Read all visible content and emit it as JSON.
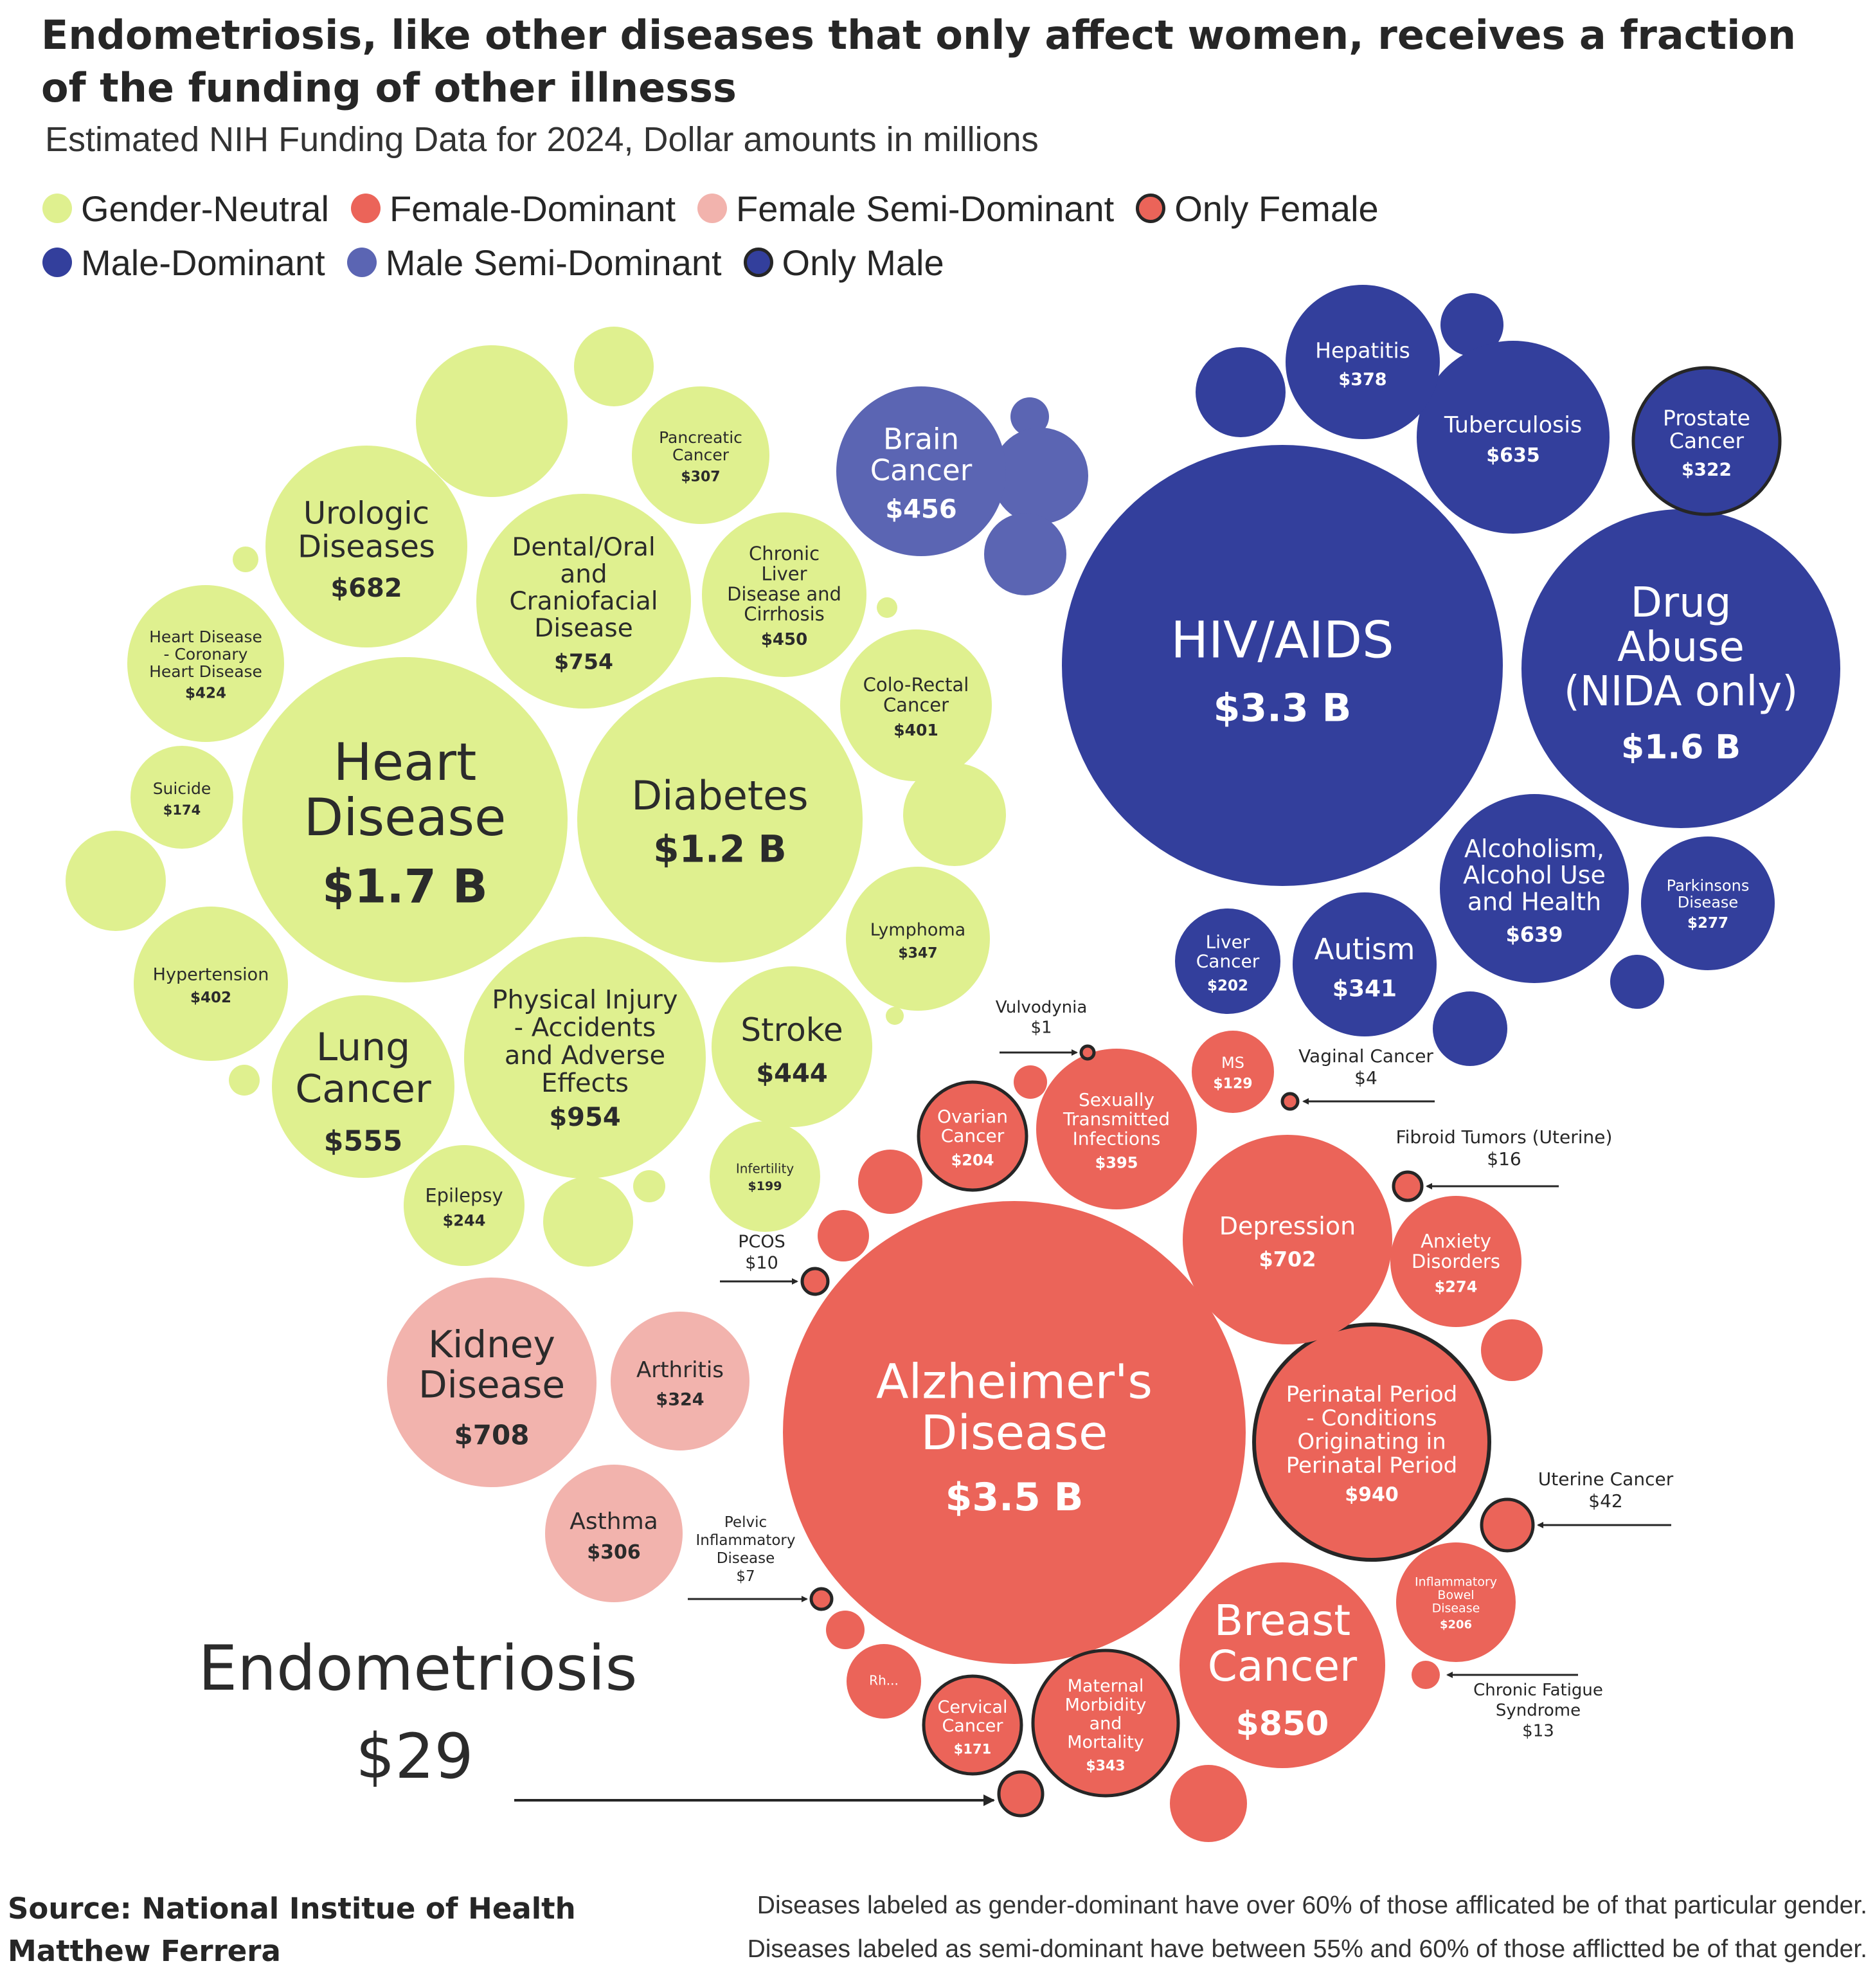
{
  "title": "Endometriosis, like other diseases that only affect women, receives a fraction of the funding of other illnesss",
  "subtitle": "Estimated NIH Funding Data for 2024, Dollar amounts in millions",
  "legend": [
    {
      "label": "Gender-Neutral",
      "color": "#dff08f",
      "outline": false
    },
    {
      "label": "Female-Dominant",
      "color": "#eb6459",
      "outline": false
    },
    {
      "label": "Female Semi-Dominant",
      "color": "#f2b3ad",
      "outline": false
    },
    {
      "label": "Only Female",
      "color": "#eb6459",
      "outline": true
    },
    {
      "label": "Male-Dominant",
      "color": "#333f9c",
      "outline": false
    },
    {
      "label": "Male Semi-Dominant",
      "color": "#5b65b3",
      "outline": false
    },
    {
      "label": "Only Male",
      "color": "#333f9c",
      "outline": true
    }
  ],
  "colors": {
    "Gender-Neutral": "#dff08f",
    "Female-Dominant": "#eb6459",
    "Female Semi-Dominant": "#f2b3ad",
    "Male-Dominant": "#333f9c",
    "Male Semi-Dominant": "#5b65b3",
    "outline": "#262626",
    "text_dark": "#2b2b2b",
    "text_light": "#ffffff"
  },
  "chart_data": {
    "type": "bubble",
    "units": "USD millions",
    "bubbles": [
      {
        "name": "Heart Disease",
        "label": "Heart\nDisease",
        "value_label": "$1.7 B",
        "value": 1700,
        "category": "Gender-Neutral"
      },
      {
        "name": "Diabetes",
        "label": "Diabetes",
        "value_label": "$1.2 B",
        "value": 1200,
        "category": "Gender-Neutral"
      },
      {
        "name": "Physical Injury - Accidents and Adverse Effects",
        "label": "Physical Injury\n- Accidents\nand Adverse\nEffects",
        "value_label": "$954",
        "value": 954,
        "category": "Gender-Neutral"
      },
      {
        "name": "Dental/Oral and Craniofacial Disease",
        "label": "Dental/Oral\nand\nCraniofacial\nDisease",
        "value_label": "$754",
        "value": 754,
        "category": "Gender-Neutral"
      },
      {
        "name": "Urologic Diseases",
        "label": "Urologic\nDiseases",
        "value_label": "$682",
        "value": 682,
        "category": "Gender-Neutral"
      },
      {
        "name": "Lung Cancer",
        "label": "Lung\nCancer",
        "value_label": "$555",
        "value": 555,
        "category": "Gender-Neutral"
      },
      {
        "name": "Chronic Liver Disease and Cirrhosis",
        "label": "Chronic\nLiver\nDisease and\nCirrhosis",
        "value_label": "$450",
        "value": 450,
        "category": "Gender-Neutral"
      },
      {
        "name": "Stroke",
        "label": "Stroke",
        "value_label": "$444",
        "value": 444,
        "category": "Gender-Neutral"
      },
      {
        "name": "Heart Disease - Coronary Heart Disease",
        "label": "Heart Disease\n- Coronary\nHeart Disease",
        "value_label": "$424",
        "value": 424,
        "category": "Gender-Neutral"
      },
      {
        "name": "Hypertension",
        "label": "Hypertension",
        "value_label": "$402",
        "value": 402,
        "category": "Gender-Neutral"
      },
      {
        "name": "Colo-Rectal Cancer",
        "label": "Colo-Rectal\nCancer",
        "value_label": "$401",
        "value": 401,
        "category": "Gender-Neutral"
      },
      {
        "name": "Lymphoma",
        "label": "Lymphoma",
        "value_label": "$347",
        "value": 347,
        "category": "Gender-Neutral"
      },
      {
        "name": "Pancreatic Cancer",
        "label": "Pancreatic\nCancer",
        "value_label": "$307",
        "value": 307,
        "category": "Gender-Neutral"
      },
      {
        "name": "Epilepsy",
        "label": "Epilepsy",
        "value_label": "$244",
        "value": 244,
        "category": "Gender-Neutral"
      },
      {
        "name": "Infertility",
        "label": "Infertility",
        "value_label": "$199",
        "value": 199,
        "category": "Gender-Neutral"
      },
      {
        "name": "Suicide",
        "label": "Suicide",
        "value_label": "$174",
        "value": 174,
        "category": "Gender-Neutral"
      },
      {
        "name": "Kidney Disease",
        "label": "Kidney\nDisease",
        "value_label": "$708",
        "value": 708,
        "category": "Female Semi-Dominant"
      },
      {
        "name": "Arthritis",
        "label": "Arthritis",
        "value_label": "$324",
        "value": 324,
        "category": "Female Semi-Dominant"
      },
      {
        "name": "Asthma",
        "label": "Asthma",
        "value_label": "$306",
        "value": 306,
        "category": "Female Semi-Dominant"
      },
      {
        "name": "HIV/AIDS",
        "label": "HIV/AIDS",
        "value_label": "$3.3 B",
        "value": 3300,
        "category": "Male-Dominant"
      },
      {
        "name": "Drug Abuse (NIDA only)",
        "label": "Drug\nAbuse\n(NIDA only)",
        "value_label": "$1.6 B",
        "value": 1600,
        "category": "Male-Dominant"
      },
      {
        "name": "Alcoholism, Alcohol Use and Health",
        "label": "Alcoholism,\nAlcohol Use\nand Health",
        "value_label": "$639",
        "value": 639,
        "category": "Male-Dominant"
      },
      {
        "name": "Tuberculosis",
        "label": "Tuberculosis",
        "value_label": "$635",
        "value": 635,
        "category": "Male-Dominant"
      },
      {
        "name": "Hepatitis",
        "label": "Hepatitis",
        "value_label": "$378",
        "value": 378,
        "category": "Male-Dominant"
      },
      {
        "name": "Autism",
        "label": "Autism",
        "value_label": "$341",
        "value": 341,
        "category": "Male-Dominant"
      },
      {
        "name": "Prostate Cancer",
        "label": "Prostate\nCancer",
        "value_label": "$322",
        "value": 322,
        "category": "Male-Dominant",
        "outline": true
      },
      {
        "name": "Parkinsons Disease",
        "label": "Parkinsons\nDisease",
        "value_label": "$277",
        "value": 277,
        "category": "Male-Dominant"
      },
      {
        "name": "Liver Cancer",
        "label": "Liver\nCancer",
        "value_label": "$202",
        "value": 202,
        "category": "Male-Dominant"
      },
      {
        "name": "Brain Cancer",
        "label": "Brain\nCancer",
        "value_label": "$456",
        "value": 456,
        "category": "Male Semi-Dominant"
      },
      {
        "name": "Alzheimer's Disease",
        "label": "Alzheimer's\nDisease",
        "value_label": "$3.5 B",
        "value": 3500,
        "category": "Female-Dominant"
      },
      {
        "name": "Perinatal Period - Conditions Originating in Perinatal Period",
        "label": "Perinatal Period\n- Conditions\nOriginating in\nPerinatal Period",
        "value_label": "$940",
        "value": 940,
        "category": "Female-Dominant",
        "outline": true
      },
      {
        "name": "Breast Cancer",
        "label": "Breast\nCancer",
        "value_label": "$850",
        "value": 850,
        "category": "Female-Dominant"
      },
      {
        "name": "Depression",
        "label": "Depression",
        "value_label": "$702",
        "value": 702,
        "category": "Female-Dominant"
      },
      {
        "name": "Sexually Transmitted Infections",
        "label": "Sexually\nTransmitted\nInfections",
        "value_label": "$395",
        "value": 395,
        "category": "Female-Dominant"
      },
      {
        "name": "Maternal Morbidity and Mortality",
        "label": "Maternal\nMorbidity\nand\nMortality",
        "value_label": "$343",
        "value": 343,
        "category": "Female-Dominant",
        "outline": true
      },
      {
        "name": "Anxiety Disorders",
        "label": "Anxiety\nDisorders",
        "value_label": "$274",
        "value": 274,
        "category": "Female-Dominant"
      },
      {
        "name": "Inflammatory Bowel Disease",
        "label": "Inflammatory\nBowel\nDisease",
        "value_label": "$206",
        "value": 206,
        "category": "Female-Dominant"
      },
      {
        "name": "Ovarian Cancer",
        "label": "Ovarian\nCancer",
        "value_label": "$204",
        "value": 204,
        "category": "Female-Dominant",
        "outline": true
      },
      {
        "name": "Cervical Cancer",
        "label": "Cervical\nCancer",
        "value_label": "$171",
        "value": 171,
        "category": "Female-Dominant",
        "outline": true
      },
      {
        "name": "MS",
        "label": "MS",
        "value_label": "$129",
        "value": 129,
        "category": "Female-Dominant"
      },
      {
        "name": "Rh...",
        "label": "Rh...",
        "value_label": "",
        "value": null,
        "category": "Female-Dominant"
      }
    ],
    "callouts": [
      {
        "name": "Vulvodynia",
        "label": "Vulvodynia",
        "value_label": "$1",
        "value": 1,
        "category": "Female-Dominant",
        "outline": true
      },
      {
        "name": "Vaginal Cancer",
        "label": "Vaginal Cancer",
        "value_label": "$4",
        "value": 4,
        "category": "Female-Dominant",
        "outline": true
      },
      {
        "name": "Fibroid Tumors (Uterine)",
        "label": "Fibroid Tumors (Uterine)",
        "value_label": "$16",
        "value": 16,
        "category": "Female-Dominant",
        "outline": true
      },
      {
        "name": "PCOS",
        "label": "PCOS",
        "value_label": "$10",
        "value": 10,
        "category": "Female-Dominant",
        "outline": true
      },
      {
        "name": "Uterine Cancer",
        "label": "Uterine Cancer",
        "value_label": "$42",
        "value": 42,
        "category": "Female-Dominant",
        "outline": true
      },
      {
        "name": "Pelvic Inflammatory Disease",
        "label": "Pelvic\nInflammatory\nDisease",
        "value_label": "$7",
        "value": 7,
        "category": "Female-Dominant",
        "outline": true
      },
      {
        "name": "Chronic Fatigue Syndrome",
        "label": "Chronic Fatigue\nSyndrome",
        "value_label": "$13",
        "value": 13,
        "category": "Female-Dominant",
        "outline": false
      }
    ],
    "highlight": {
      "name": "Endometriosis",
      "label": "Endometriosis",
      "value_label": "$29",
      "value": 29,
      "category": "Female-Dominant",
      "outline": true
    },
    "unlabeled_bubbles": 25
  },
  "footer": {
    "source": "Source: National Institue of Health",
    "author": "Matthew Ferrera",
    "note_dominant": "Diseases labeled as gender-dominant have over 60% of those afflicated be of that particular gender.",
    "note_semi": "Diseases labeled as semi-dominant have between 55% and 60% of those afflictted be of that gender."
  }
}
